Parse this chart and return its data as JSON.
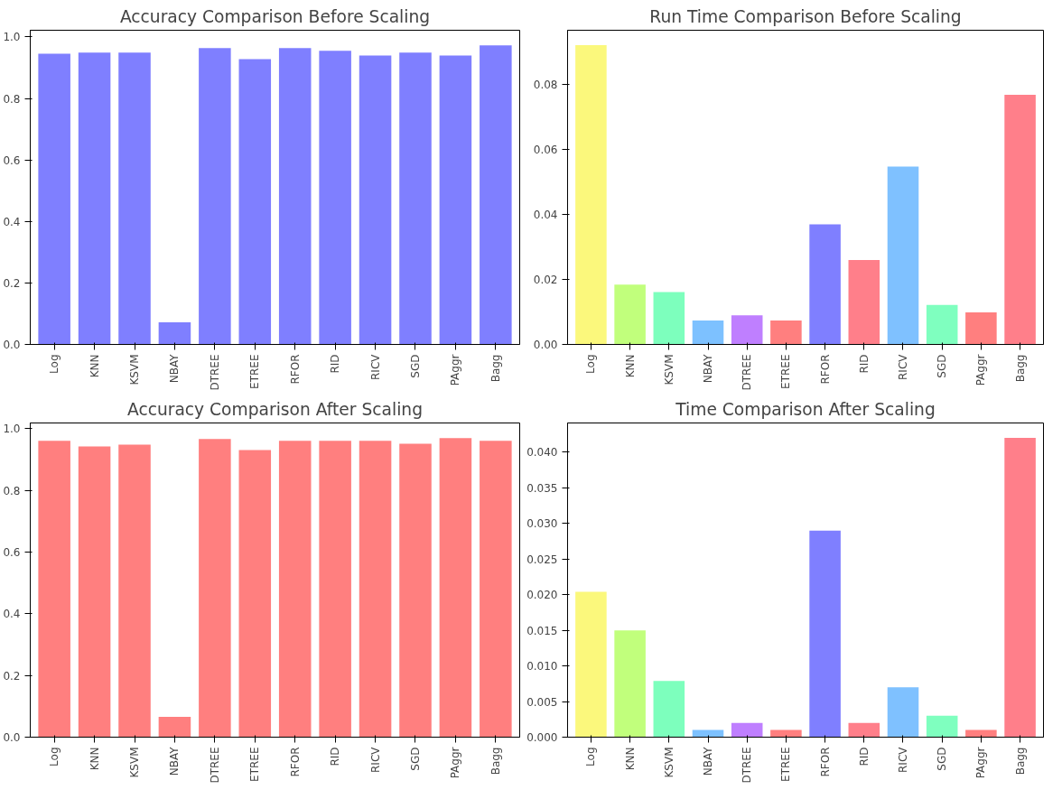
{
  "chart_data": [
    {
      "type": "bar",
      "title": "Accuracy Comparison Before Scaling",
      "categories": [
        "Log",
        "KNN",
        "KSVM",
        "NBAY",
        "DTREE",
        "ETREE",
        "RFOR",
        "RID",
        "RICV",
        "SGD",
        "PAggr",
        "Bagg"
      ],
      "values": [
        0.946,
        0.949,
        0.949,
        0.072,
        0.964,
        0.928,
        0.964,
        0.955,
        0.94,
        0.949,
        0.94,
        0.973
      ],
      "color": "#7f7fff",
      "ylim": [
        0,
        1.022
      ],
      "yticks": [
        {
          "value": 0,
          "label": "0.0"
        },
        {
          "value": 0.2,
          "label": "0.2"
        },
        {
          "value": 0.4,
          "label": "0.4"
        },
        {
          "value": 0.6,
          "label": "0.6"
        },
        {
          "value": 0.8,
          "label": "0.8"
        },
        {
          "value": 1,
          "label": "1.0"
        }
      ],
      "grid": false
    },
    {
      "type": "bar",
      "title": "Run Time Comparison Before Scaling",
      "categories": [
        "Log",
        "KNN",
        "KSVM",
        "NBAY",
        "DTREE",
        "ETREE",
        "RFOR",
        "RID",
        "RICV",
        "SGD",
        "PAggr",
        "Bagg"
      ],
      "values": [
        0.0922,
        0.0184,
        0.0161,
        0.0074,
        0.009,
        0.0074,
        0.037,
        0.026,
        0.0548,
        0.0122,
        0.0099,
        0.0769
      ],
      "colors": [
        "#fbf87c",
        "#c1ff7c",
        "#7dffbd",
        "#7dc1ff",
        "#bf7fff",
        "#ff7f7f",
        "#7f7fff",
        "#ff7f8a",
        "#7fc1ff",
        "#7fffbf",
        "#ff7f7f",
        "#ff7f8a"
      ],
      "ylim": [
        0,
        0.0968
      ],
      "yticks": [
        {
          "value": 0,
          "label": "0.00"
        },
        {
          "value": 0.02,
          "label": "0.02"
        },
        {
          "value": 0.04,
          "label": "0.04"
        },
        {
          "value": 0.06,
          "label": "0.06"
        },
        {
          "value": 0.08,
          "label": "0.08"
        }
      ],
      "grid": false
    },
    {
      "type": "bar",
      "title": "Accuracy Comparison After Scaling",
      "categories": [
        "Log",
        "KNN",
        "KSVM",
        "NBAY",
        "DTREE",
        "ETREE",
        "RFOR",
        "RID",
        "RICV",
        "SGD",
        "PAggr",
        "Bagg"
      ],
      "values": [
        0.961,
        0.943,
        0.949,
        0.066,
        0.967,
        0.931,
        0.961,
        0.961,
        0.961,
        0.952,
        0.97,
        0.961
      ],
      "color": "#ff7f7f",
      "ylim": [
        0,
        1.019
      ],
      "yticks": [
        {
          "value": 0,
          "label": "0.0"
        },
        {
          "value": 0.2,
          "label": "0.2"
        },
        {
          "value": 0.4,
          "label": "0.4"
        },
        {
          "value": 0.6,
          "label": "0.6"
        },
        {
          "value": 0.8,
          "label": "0.8"
        },
        {
          "value": 1,
          "label": "1.0"
        }
      ],
      "grid": false
    },
    {
      "type": "bar",
      "title": "Time Comparison After Scaling",
      "categories": [
        "Log",
        "KNN",
        "KSVM",
        "NBAY",
        "DTREE",
        "ETREE",
        "RFOR",
        "RID",
        "RICV",
        "SGD",
        "PAggr",
        "Bagg"
      ],
      "values": [
        0.0204,
        0.015,
        0.0079,
        0.001,
        0.002,
        0.001,
        0.029,
        0.002,
        0.007,
        0.003,
        0.001,
        0.042
      ],
      "colors": [
        "#fbf87c",
        "#c1ff7c",
        "#7dffbd",
        "#7dc1ff",
        "#bf7fff",
        "#ff7f7f",
        "#7f7fff",
        "#ff7f8a",
        "#7fc1ff",
        "#7fffbf",
        "#ff7f7f",
        "#ff7f8a"
      ],
      "ylim": [
        0,
        0.0441
      ],
      "yticks": [
        {
          "value": 0,
          "label": "0.000"
        },
        {
          "value": 0.005,
          "label": "0.005"
        },
        {
          "value": 0.01,
          "label": "0.010"
        },
        {
          "value": 0.015,
          "label": "0.015"
        },
        {
          "value": 0.02,
          "label": "0.020"
        },
        {
          "value": 0.025,
          "label": "0.025"
        },
        {
          "value": 0.03,
          "label": "0.030"
        },
        {
          "value": 0.035,
          "label": "0.035"
        },
        {
          "value": 0.04,
          "label": "0.040"
        }
      ],
      "grid": false
    }
  ]
}
